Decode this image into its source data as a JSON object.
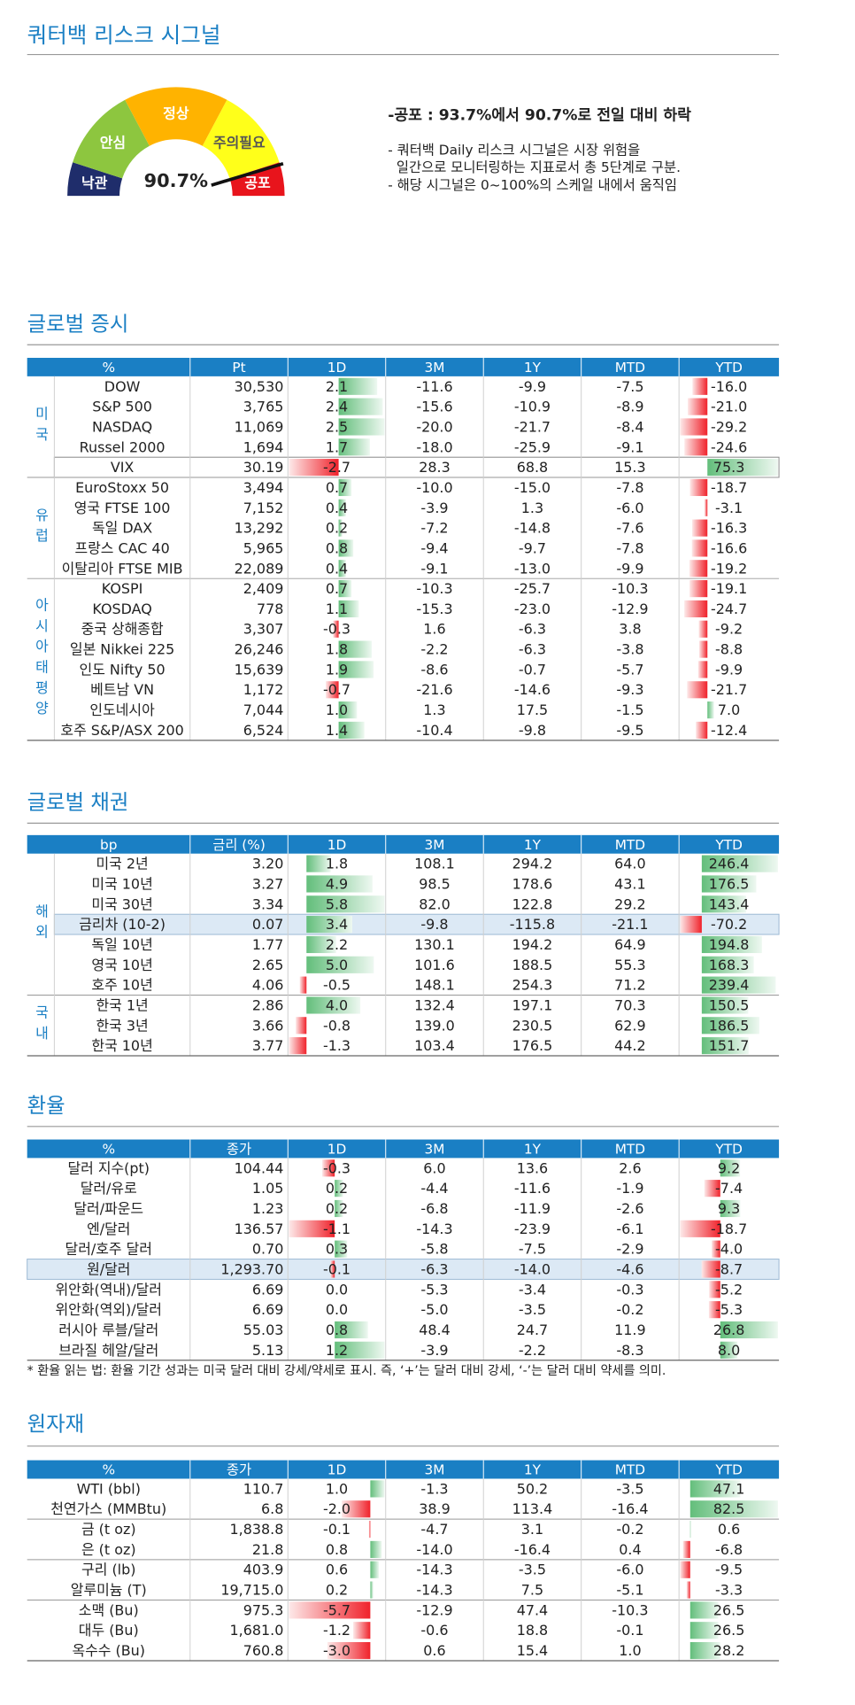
{
  "header": {
    "title": "쿼터백 리스크 시그널"
  },
  "gauge": {
    "segments": [
      "낙관",
      "안심",
      "정상",
      "주의필요",
      "공포"
    ],
    "value": 90.7,
    "value_label": "90.7%"
  },
  "summary": {
    "headline": "-공포 : 93.7%에서 90.7%로 전일 대비 하락",
    "lines": [
      "- 쿼터백 Daily 리스크 시그널은 시장 위험을",
      "  일간으로 모니터링하는 지표로서 총 5단계로 구분.",
      "- 해당 시그널은 0~100%의 스케일 내에서 움직임"
    ]
  },
  "tables": [
    {
      "title": "글로벌 증시",
      "columns": [
        "%",
        "Pt",
        "1D",
        "3M",
        "1Y",
        "MTD",
        "YTD"
      ],
      "bar_columns": [
        2,
        6
      ],
      "groups": [
        {
          "label": "미국",
          "rows": [
            {
              "cells": [
                "DOW",
                "30,530",
                2.1,
                "-11.6",
                "-9.9",
                "-7.5",
                {
                  "value": -16,
                  "label": "-16.0"
                }
              ]
            },
            {
              "cells": [
                "S&P 500",
                "3,765",
                2.4,
                "-15.6",
                "-10.9",
                "-8.9",
                {
                  "value": -21,
                  "label": "-21.0"
                }
              ]
            },
            {
              "cells": [
                "NASDAQ",
                "11,069",
                2.5,
                "-20.0",
                "-21.7",
                "-8.4",
                -29.2
              ]
            },
            {
              "cells": [
                "Russel 2000",
                "1,694",
                1.7,
                "-18.0",
                "-25.9",
                "-9.1",
                -24.6
              ]
            },
            {
              "cells": [
                "VIX",
                "30.19",
                -2.7,
                "28.3",
                "68.8",
                "15.3",
                75.3
              ],
              "highlight": "outline"
            }
          ]
        },
        {
          "label": "유럽",
          "rows": [
            {
              "cells": [
                "EuroStoxx 50",
                "3,494",
                0.7,
                "-10.0",
                "-15.0",
                "-7.8",
                -18.7
              ]
            },
            {
              "cells": [
                "영국 FTSE 100",
                "7,152",
                0.4,
                "-3.9",
                "1.3",
                "-6.0",
                -3.1
              ]
            },
            {
              "cells": [
                "독일 DAX",
                "13,292",
                0.2,
                "-7.2",
                "-14.8",
                "-7.6",
                -16.3
              ]
            },
            {
              "cells": [
                "프랑스 CAC 40",
                "5,965",
                0.8,
                "-9.4",
                "-9.7",
                "-7.8",
                -16.6
              ]
            },
            {
              "cells": [
                "이탈리아 FTSE MIB",
                "22,089",
                0.4,
                "-9.1",
                "-13.0",
                "-9.9",
                -19.2
              ]
            }
          ]
        },
        {
          "label": "아시아태평양",
          "rows": [
            {
              "cells": [
                "KOSPI",
                "2,409",
                0.7,
                "-10.3",
                "-25.7",
                "-10.3",
                -19.1
              ]
            },
            {
              "cells": [
                "KOSDAQ",
                "778",
                1.1,
                "-15.3",
                "-23.0",
                "-12.9",
                -24.7
              ]
            },
            {
              "cells": [
                "중국 상해종합",
                "3,307",
                -0.3,
                "1.6",
                "-6.3",
                "3.8",
                -9.2
              ]
            },
            {
              "cells": [
                "일본 Nikkei 225",
                "26,246",
                1.8,
                "-2.2",
                "-6.3",
                "-3.8",
                -8.8
              ]
            },
            {
              "cells": [
                "인도 Nifty 50",
                "15,639",
                1.9,
                "-8.6",
                "-0.7",
                "-5.7",
                -9.9
              ]
            },
            {
              "cells": [
                "베트남 VN",
                "1,172",
                -0.7,
                "-21.6",
                "-14.6",
                "-9.3",
                -21.7
              ]
            },
            {
              "cells": [
                "인도네시아",
                "7,044",
                {
                  "value": 1,
                  "label": "1.0"
                },
                "1.3",
                "17.5",
                "-1.5",
                {
                  "value": 7,
                  "label": "7.0"
                }
              ]
            },
            {
              "cells": [
                "호주 S&P/ASX 200",
                "6,524",
                1.4,
                "-10.4",
                "-9.8",
                "-9.5",
                -12.4
              ]
            }
          ]
        }
      ]
    },
    {
      "title": "글로벌 채권",
      "columns": [
        "bp",
        "금리 (%)",
        "1D",
        "3M",
        "1Y",
        "MTD",
        "YTD"
      ],
      "bar_columns": [
        2,
        6
      ],
      "groups": [
        {
          "label": "해외",
          "rows": [
            {
              "cells": [
                "미국 2년",
                "3.20",
                1.8,
                "108.1",
                "294.2",
                "64.0",
                246.4
              ]
            },
            {
              "cells": [
                "미국 10년",
                "3.27",
                4.9,
                "98.5",
                "178.6",
                "43.1",
                176.5
              ]
            },
            {
              "cells": [
                "미국 30년",
                "3.34",
                5.8,
                "82.0",
                "122.8",
                "29.2",
                143.4
              ]
            },
            {
              "cells": [
                "금리차 (10-2)",
                "0.07",
                3.4,
                "-9.8",
                "-115.8",
                "-21.1",
                -70.2
              ],
              "highlight": "fill"
            },
            {
              "cells": [
                "독일 10년",
                "1.77",
                2.2,
                "130.1",
                "194.2",
                "64.9",
                194.8
              ]
            },
            {
              "cells": [
                "영국 10년",
                "2.65",
                {
                  "value": 5,
                  "label": "5.0"
                },
                "101.6",
                "188.5",
                "55.3",
                168.3
              ]
            },
            {
              "cells": [
                "호주 10년",
                "4.06",
                -0.5,
                "148.1",
                "254.3",
                "71.2",
                239.4
              ]
            }
          ]
        },
        {
          "label": "국내",
          "rows": [
            {
              "cells": [
                "한국 1년",
                "2.86",
                {
                  "value": 4,
                  "label": "4.0"
                },
                "132.4",
                "197.1",
                "70.3",
                150.5
              ]
            },
            {
              "cells": [
                "한국 3년",
                "3.66",
                -0.8,
                "139.0",
                "230.5",
                "62.9",
                186.5
              ]
            },
            {
              "cells": [
                "한국 10년",
                "3.77",
                -1.3,
                "103.4",
                "176.5",
                "44.2",
                151.7
              ]
            }
          ]
        }
      ]
    },
    {
      "title": "환율",
      "columns": [
        "%",
        "종가",
        "1D",
        "3M",
        "1Y",
        "MTD",
        "YTD"
      ],
      "bar_columns": [
        2,
        6
      ],
      "groups": [
        {
          "rows": [
            {
              "cells": [
                "달러 지수(pt)",
                "104.44",
                -0.3,
                "6.0",
                "13.6",
                "2.6",
                9.2
              ]
            },
            {
              "cells": [
                "달러/유로",
                "1.05",
                0.2,
                "-4.4",
                "-11.6",
                "-1.9",
                -7.4
              ]
            },
            {
              "cells": [
                "달러/파운드",
                "1.23",
                0.2,
                "-6.8",
                "-11.9",
                "-2.6",
                9.3
              ]
            },
            {
              "cells": [
                "엔/달러",
                "136.57",
                -1.1,
                "-14.3",
                "-23.9",
                "-6.1",
                -18.7
              ]
            },
            {
              "cells": [
                "달러/호주 달러",
                "0.70",
                0.3,
                "-5.8",
                "-7.5",
                "-2.9",
                {
                  "value": -4,
                  "label": "-4.0"
                }
              ]
            },
            {
              "cells": [
                "원/달러",
                "1,293.70",
                -0.1,
                "-6.3",
                "-14.0",
                "-4.6",
                -8.7
              ],
              "highlight": "fill"
            },
            {
              "cells": [
                "위안화(역내)/달러",
                "6.69",
                {
                  "value": 0,
                  "label": "0.0"
                },
                "-5.3",
                "-3.4",
                "-0.3",
                -5.2
              ]
            },
            {
              "cells": [
                "위안화(역외)/달러",
                "6.69",
                {
                  "value": 0,
                  "label": "0.0"
                },
                "-5.0",
                "-3.5",
                "-0.2",
                -5.3
              ]
            },
            {
              "cells": [
                "러시아 루블/달러",
                "55.03",
                0.8,
                "48.4",
                "24.7",
                "11.9",
                26.8
              ]
            },
            {
              "cells": [
                "브라질 헤알/달러",
                "5.13",
                1.2,
                "-3.9",
                "-2.2",
                "-8.3",
                {
                  "value": 8,
                  "label": "8.0"
                }
              ]
            }
          ]
        }
      ],
      "footnote": "* 환율 읽는 법: 환율 기간 성과는 미국 달러 대비 강세/약세로 표시. 즉, ‘+’는 달러 대비 강세, ‘-’는 달러 대비 약세를 의미."
    },
    {
      "title": "원자재",
      "columns": [
        "%",
        "종가",
        "1D",
        "3M",
        "1Y",
        "MTD",
        "YTD"
      ],
      "bar_columns": [
        2,
        6
      ],
      "groups": [
        {
          "rows": [
            {
              "cells": [
                "WTI (bbl)",
                "110.7",
                {
                  "value": 1,
                  "label": "1.0"
                },
                "-1.3",
                "50.2",
                "-3.5",
                47.1
              ]
            },
            {
              "cells": [
                "천연가스 (MMBtu)",
                "6.8",
                {
                  "value": -2,
                  "label": "-2.0"
                },
                "38.9",
                "113.4",
                "-16.4",
                82.5
              ]
            }
          ]
        },
        {
          "rows": [
            {
              "cells": [
                "금 (t oz)",
                "1,838.8",
                -0.1,
                "-4.7",
                "3.1",
                "-0.2",
                0.6
              ]
            },
            {
              "cells": [
                "은 (t oz)",
                "21.8",
                0.8,
                "-14.0",
                "-16.4",
                "0.4",
                -6.8
              ]
            }
          ]
        },
        {
          "rows": [
            {
              "cells": [
                "구리 (lb)",
                "403.9",
                0.6,
                "-14.3",
                "-3.5",
                "-6.0",
                -9.5
              ]
            },
            {
              "cells": [
                "알루미늄 (T)",
                "19,715.0",
                0.2,
                "-14.3",
                "7.5",
                "-5.1",
                -3.3
              ]
            }
          ]
        },
        {
          "rows": [
            {
              "cells": [
                "소맥 (Bu)",
                "975.3",
                -5.7,
                "-12.9",
                "47.4",
                "-10.3",
                26.5
              ]
            },
            {
              "cells": [
                "대두 (Bu)",
                "1,681.0",
                -1.2,
                "-0.6",
                "18.8",
                "-0.1",
                26.5
              ]
            },
            {
              "cells": [
                "옥수수 (Bu)",
                "760.8",
                {
                  "value": -3,
                  "label": "-3.0"
                },
                "0.6",
                "15.4",
                "1.0",
                28.2
              ]
            }
          ]
        }
      ]
    }
  ]
}
